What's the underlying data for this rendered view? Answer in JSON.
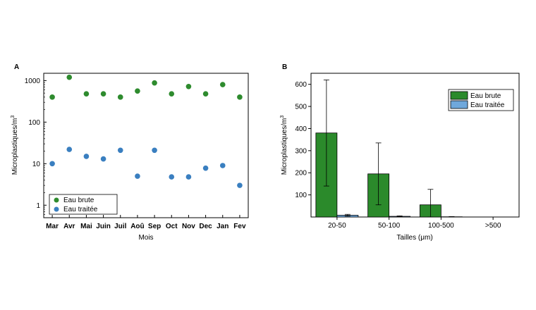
{
  "colors": {
    "brute": "#2e8b2e",
    "traitee": "#3a7fc0",
    "bar_brute": "#2b8a2b",
    "bar_traitee": "#6fa8dc"
  },
  "chart_data": [
    {
      "panel_label": "A",
      "type": "scatter",
      "x": [
        "Mar",
        "Avr",
        "Mai",
        "Juin",
        "Juil",
        "Aoû",
        "Sep",
        "Oct",
        "Nov",
        "Dec",
        "Jan",
        "Fev"
      ],
      "xlabel": "Mois",
      "ylabel": "Microplastiques/m",
      "ylabel_sup": "3",
      "yscale": "log",
      "ylim": [
        0.5,
        1500
      ],
      "yticks": [
        1,
        10,
        100,
        1000
      ],
      "ytick_labels": [
        "1",
        "10",
        "100",
        "1000"
      ],
      "series": [
        {
          "name": "Eau brute",
          "values": [
            400,
            1200,
            480,
            480,
            400,
            560,
            880,
            480,
            720,
            480,
            800,
            400
          ]
        },
        {
          "name": "Eau traitée",
          "values": [
            10,
            22,
            15,
            13,
            21,
            5,
            21,
            4.8,
            4.8,
            7.8,
            9,
            3
          ]
        }
      ],
      "legend": "bottom-left"
    },
    {
      "panel_label": "B",
      "type": "bar",
      "categories": [
        "20-50",
        "50-100",
        "100-500",
        ">500"
      ],
      "xlabel": "Tailles (μm)",
      "ylabel": "Microplastiques/m",
      "ylabel_sup": "3",
      "ylim": [
        0,
        650
      ],
      "yticks": [
        100,
        200,
        300,
        400,
        500,
        600
      ],
      "ytick_labels": [
        "100",
        "200",
        "300",
        "400",
        "500",
        "600"
      ],
      "series": [
        {
          "name": "Eau brute",
          "values": [
            380,
            195,
            55,
            0
          ],
          "errors": [
            240,
            140,
            70,
            0
          ]
        },
        {
          "name": "Eau traitée",
          "values": [
            8,
            3,
            1,
            0
          ],
          "errors": [
            4,
            2,
            1,
            0
          ]
        }
      ],
      "legend": "top-right"
    }
  ]
}
